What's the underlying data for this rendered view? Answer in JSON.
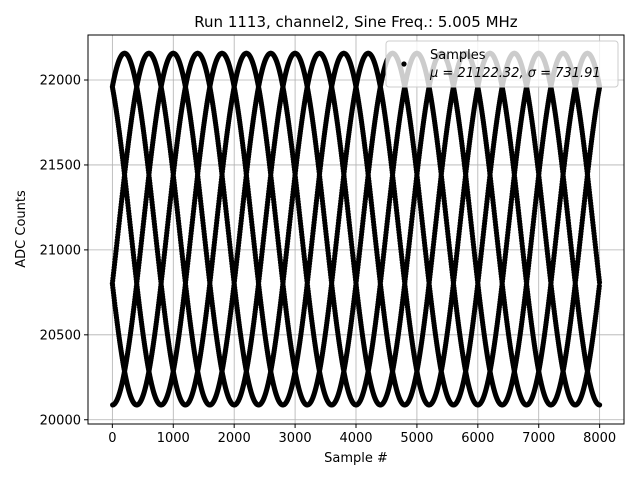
{
  "chart_data": {
    "type": "scatter",
    "title": "Run 1113, channel2, Sine Freq.: 5.005 MHz",
    "xlabel": "Sample #",
    "ylabel": "ADC Counts",
    "xlim": [
      -400,
      8400
    ],
    "ylim": [
      19975,
      22265
    ],
    "xticks": [
      0,
      1000,
      2000,
      3000,
      4000,
      5000,
      6000,
      7000,
      8000
    ],
    "xtick_labels": [
      "0",
      "1000",
      "2000",
      "3000",
      "4000",
      "5000",
      "6000",
      "7000",
      "8000"
    ],
    "yticks": [
      20000,
      20500,
      21000,
      21500,
      22000
    ],
    "ytick_labels": [
      "20000",
      "20500",
      "21000",
      "21500",
      "22000"
    ],
    "grid": true,
    "legend": {
      "placement": "top-right",
      "label": "Samples",
      "stats": "μ = 21122.32, σ = 731.91"
    },
    "series": [
      {
        "name": "Samples",
        "color": "#000000",
        "sample_count": 8000,
        "signal": {
          "mean": 21122.32,
          "amplitude": 1035,
          "period_samples": 2000,
          "phases_deg": [
            -18,
            54,
            126,
            198,
            270
          ]
        }
      }
    ]
  },
  "colors": {
    "points": "#000000",
    "grid": "#b0b0b0",
    "axes": "#000000",
    "legend_border": "#cccccc"
  }
}
